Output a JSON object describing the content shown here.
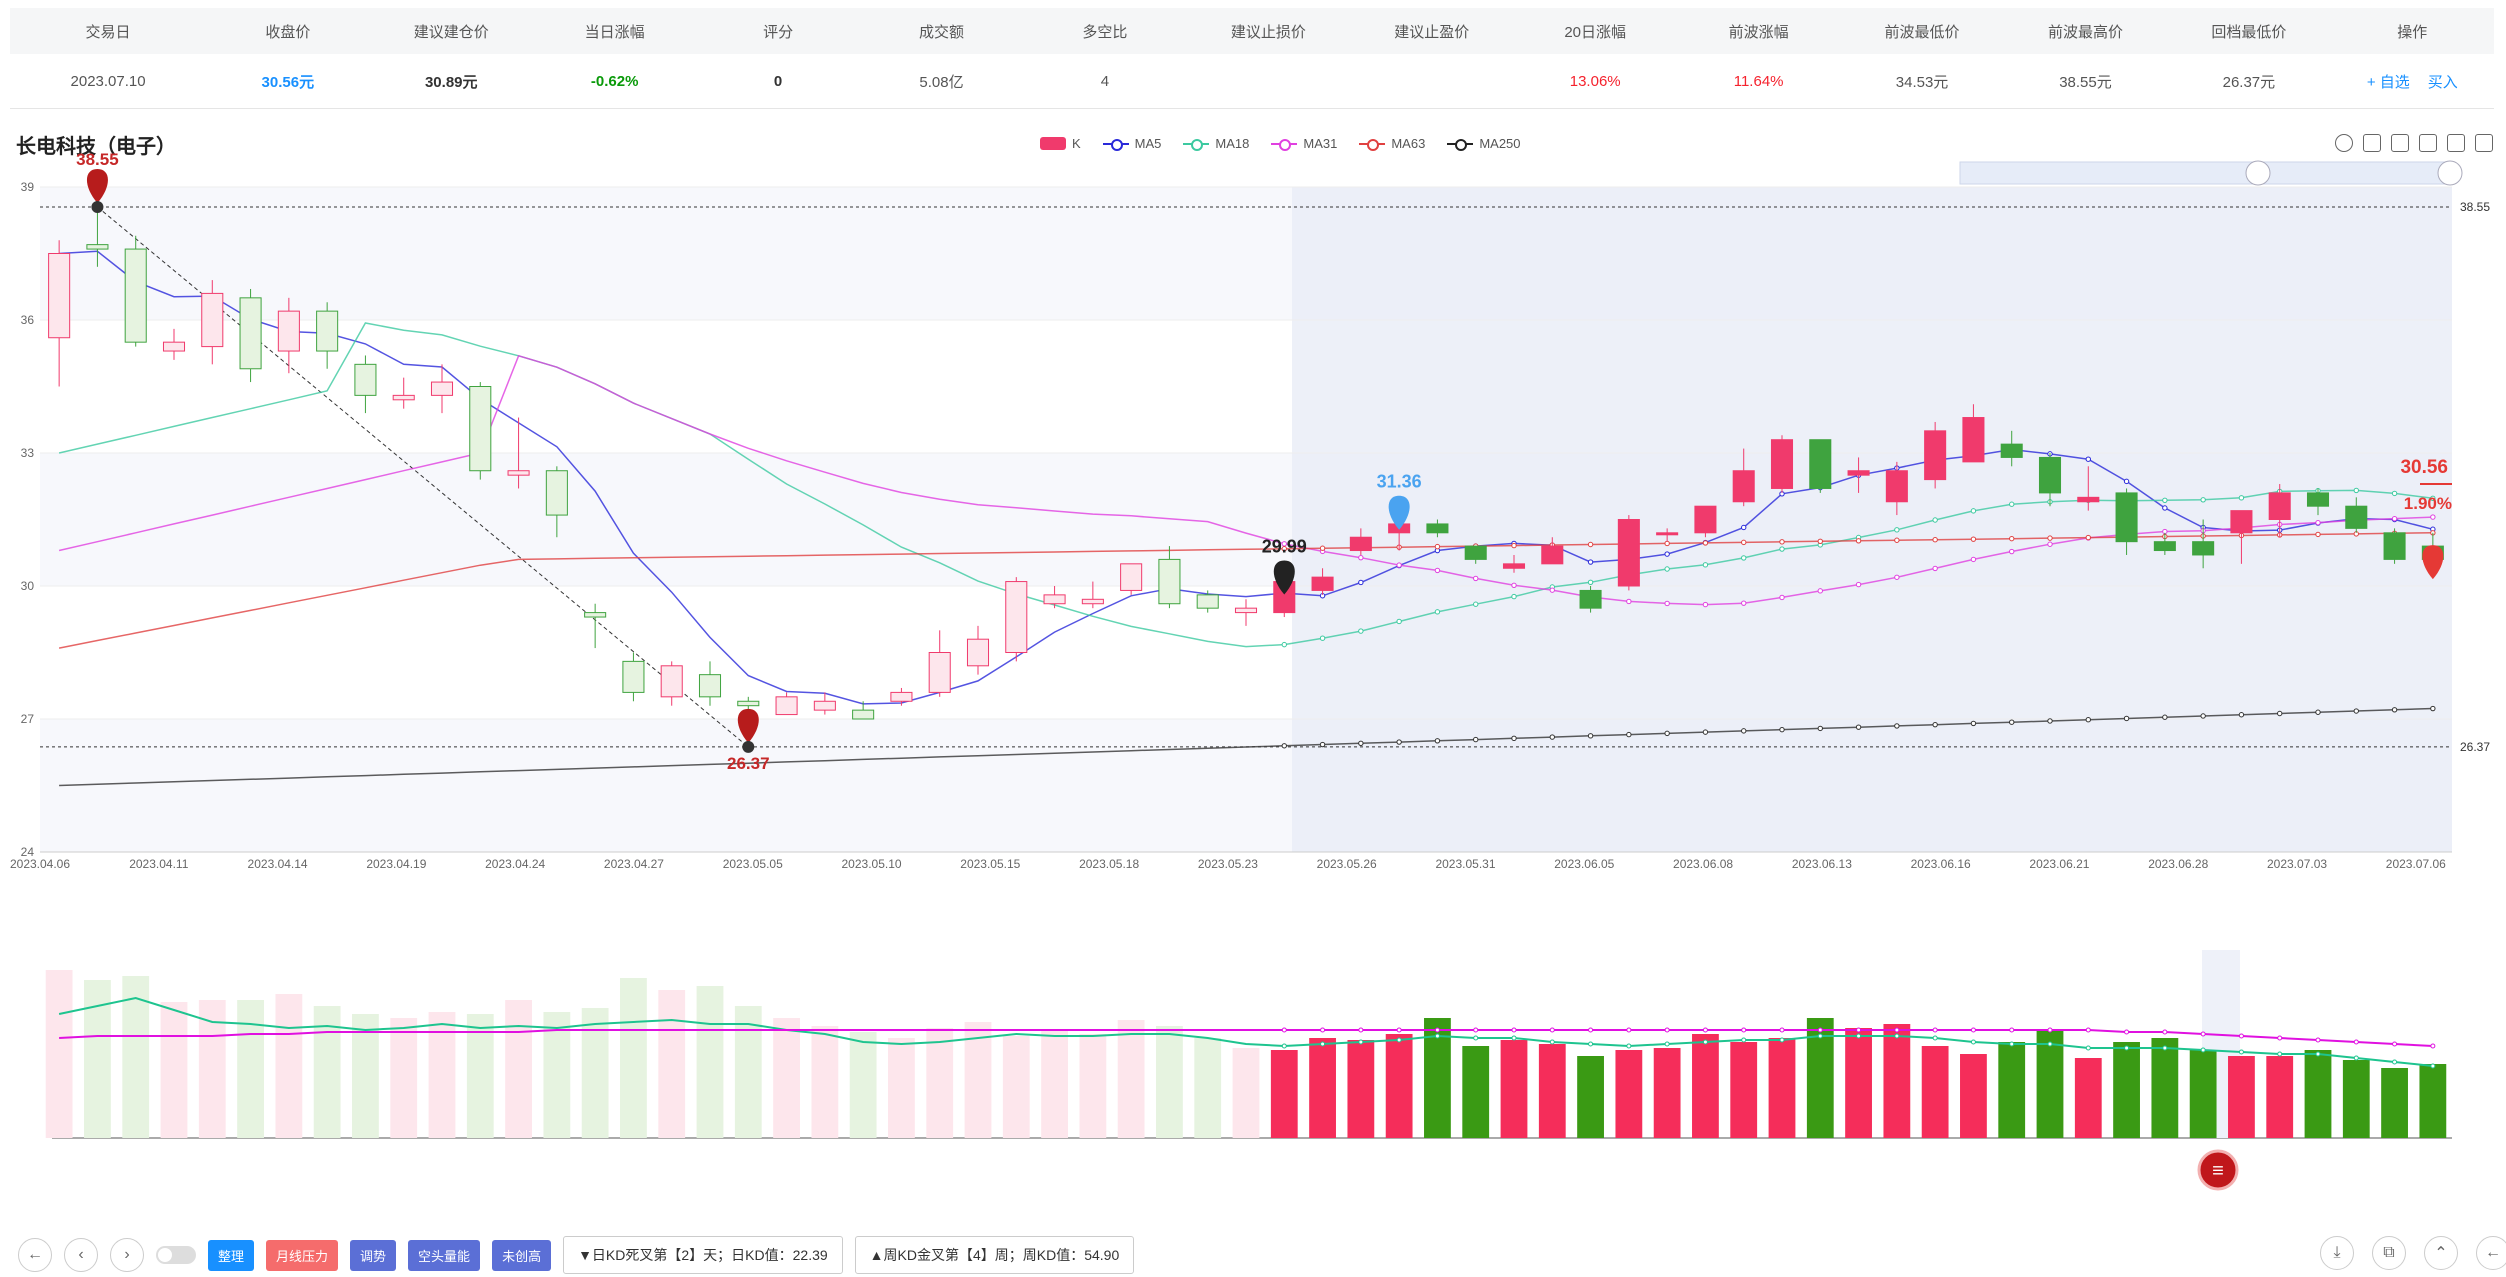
{
  "table": {
    "headers": [
      "交易日",
      "收盘价",
      "建议建仓价",
      "当日涨幅",
      "评分",
      "成交额",
      "多空比",
      "建议止损价",
      "建议止盈价",
      "20日涨幅",
      "前波涨幅",
      "前波最低价",
      "前波最高价",
      "回档最低价",
      "操作"
    ],
    "row": {
      "date": "2023.07.10",
      "close": "30.56元",
      "build": "30.89元",
      "day_change": "-0.62%",
      "score": "0",
      "turnover": "5.08亿",
      "ratio": "4",
      "stop_loss": "",
      "take_profit": "",
      "chg20": "13.06%",
      "prev_chg": "11.64%",
      "prev_low": "34.53元",
      "prev_high": "38.55元",
      "pull_low": "26.37元"
    },
    "ops": {
      "watch": "+ 自选",
      "buy": "买入"
    }
  },
  "stock_title": "长电科技（电子）",
  "legend": [
    {
      "name": "K",
      "color": "#f03a6c"
    },
    {
      "name": "MA5",
      "color": "#2929d9"
    },
    {
      "name": "MA18",
      "color": "#3cc9a0"
    },
    {
      "name": "MA31",
      "color": "#e040e0"
    },
    {
      "name": "MA63",
      "color": "#e04040"
    },
    {
      "name": "MA250",
      "color": "#222222"
    }
  ],
  "chart_data": {
    "type": "candlestick",
    "ylim": [
      24,
      39
    ],
    "yticks": [
      "39",
      "36",
      "33",
      "30",
      "27",
      "24"
    ],
    "xticks": [
      "2023.04.06",
      "2023.04.11",
      "2023.04.14",
      "2023.04.19",
      "2023.04.24",
      "2023.04.27",
      "2023.05.05",
      "2023.05.10",
      "2023.05.15",
      "2023.05.18",
      "2023.05.23",
      "2023.05.26",
      "2023.05.31",
      "2023.06.05",
      "2023.06.08",
      "2023.06.13",
      "2023.06.16",
      "2023.06.21",
      "2023.06.28",
      "2023.07.03",
      "2023.07.06"
    ],
    "hlines": [
      "38.55",
      "26.37"
    ],
    "annotations": {
      "high": "38.55",
      "low": "26.37",
      "mark1": "29.99",
      "mark2": "31.36",
      "last": "30.56",
      "last_pct": "1.90%"
    },
    "candles": [
      [
        35.6,
        37.5,
        34.5,
        37.8
      ],
      [
        37.7,
        37.6,
        37.2,
        38.5
      ],
      [
        37.6,
        35.5,
        35.4,
        37.9
      ],
      [
        35.3,
        35.5,
        35.1,
        35.8
      ],
      [
        35.4,
        36.6,
        35.0,
        36.9
      ],
      [
        36.5,
        34.9,
        34.6,
        36.7
      ],
      [
        35.3,
        36.2,
        34.8,
        36.5
      ],
      [
        36.2,
        35.3,
        34.9,
        36.4
      ],
      [
        35.0,
        34.3,
        33.9,
        35.2
      ],
      [
        34.2,
        34.3,
        34.0,
        34.7
      ],
      [
        34.3,
        34.6,
        33.9,
        35.0
      ],
      [
        34.5,
        32.6,
        32.4,
        34.6
      ],
      [
        32.5,
        32.6,
        32.2,
        33.8
      ],
      [
        32.6,
        31.6,
        31.1,
        32.7
      ],
      [
        29.4,
        29.3,
        28.6,
        29.6
      ],
      [
        28.3,
        27.6,
        27.4,
        28.5
      ],
      [
        27.5,
        28.2,
        27.3,
        28.3
      ],
      [
        28.0,
        27.5,
        27.3,
        28.3
      ],
      [
        27.4,
        27.3,
        27.1,
        27.5
      ],
      [
        27.1,
        27.5,
        27.1,
        27.6
      ],
      [
        27.2,
        27.4,
        27.1,
        27.6
      ],
      [
        27.2,
        27.0,
        27.0,
        27.4
      ],
      [
        27.4,
        27.6,
        27.3,
        27.7
      ],
      [
        27.6,
        28.5,
        27.5,
        29.0
      ],
      [
        28.2,
        28.8,
        28.0,
        29.1
      ],
      [
        28.5,
        30.1,
        28.3,
        30.2
      ],
      [
        29.6,
        29.8,
        29.5,
        30.0
      ],
      [
        29.6,
        29.7,
        29.5,
        30.1
      ],
      [
        29.9,
        30.5,
        29.8,
        30.5
      ],
      [
        30.6,
        29.6,
        29.5,
        30.9
      ],
      [
        29.8,
        29.5,
        29.4,
        29.9
      ],
      [
        29.4,
        29.5,
        29.1,
        29.7
      ],
      [
        29.4,
        30.1,
        29.3,
        30.1
      ],
      [
        29.9,
        30.2,
        29.8,
        30.4
      ],
      [
        30.8,
        31.1,
        30.7,
        31.3
      ],
      [
        31.2,
        31.4,
        30.8,
        31.5
      ],
      [
        31.4,
        31.2,
        31.1,
        31.5
      ],
      [
        30.9,
        30.6,
        30.5,
        30.9
      ],
      [
        30.4,
        30.5,
        30.3,
        30.7
      ],
      [
        30.5,
        30.9,
        30.5,
        31.1
      ],
      [
        29.9,
        29.5,
        29.4,
        30.0
      ],
      [
        30.0,
        31.5,
        29.9,
        31.6
      ],
      [
        31.2,
        31.2,
        31.0,
        31.3
      ],
      [
        31.2,
        31.8,
        31.1,
        31.8
      ],
      [
        31.9,
        32.6,
        31.8,
        33.1
      ],
      [
        32.2,
        33.3,
        32.1,
        33.4
      ],
      [
        33.3,
        32.2,
        32.1,
        33.3
      ],
      [
        32.5,
        32.6,
        32.1,
        32.9
      ],
      [
        31.9,
        32.6,
        31.6,
        32.8
      ],
      [
        32.4,
        33.5,
        32.2,
        33.7
      ],
      [
        32.8,
        33.8,
        32.8,
        34.1
      ],
      [
        33.2,
        32.9,
        32.7,
        33.5
      ],
      [
        32.9,
        32.1,
        31.8,
        33.0
      ],
      [
        31.9,
        32.0,
        31.7,
        32.7
      ],
      [
        32.1,
        31.0,
        30.7,
        32.2
      ],
      [
        31.0,
        30.8,
        30.7,
        31.2
      ],
      [
        31.0,
        30.7,
        30.4,
        31.5
      ],
      [
        31.2,
        31.7,
        30.5,
        31.7
      ],
      [
        31.5,
        32.1,
        31.1,
        32.3
      ],
      [
        32.1,
        31.8,
        31.6,
        32.2
      ],
      [
        31.8,
        31.3,
        31.2,
        32.0
      ],
      [
        31.2,
        30.6,
        30.5,
        31.3
      ],
      [
        30.9,
        30.6,
        30.2,
        31.2
      ]
    ],
    "volume": [
      84,
      79,
      81,
      68,
      69,
      69,
      72,
      66,
      62,
      60,
      63,
      62,
      69,
      63,
      65,
      80,
      74,
      76,
      66,
      60,
      56,
      53,
      50,
      55,
      58,
      51,
      54,
      52,
      59,
      56,
      50,
      45,
      44,
      50,
      49,
      52,
      60,
      46,
      49,
      47,
      41,
      44,
      45,
      52,
      48,
      50,
      60,
      55,
      57,
      46,
      42,
      48,
      54,
      40,
      48,
      50,
      44,
      41,
      41,
      44,
      39,
      35,
      37
    ],
    "volume_ma": [
      62,
      66,
      70,
      64,
      58,
      57,
      55,
      56,
      54,
      55,
      57,
      55,
      56,
      55,
      57,
      58,
      59,
      57,
      57,
      54,
      52,
      48,
      47,
      48,
      50,
      52,
      51,
      51,
      52,
      52,
      50,
      47,
      46,
      47,
      48,
      49,
      51,
      50,
      50,
      48,
      47,
      46,
      47,
      48,
      49,
      49,
      51,
      51,
      51,
      50,
      48,
      47,
      47,
      45,
      45,
      45,
      44,
      43,
      42,
      42,
      40,
      38,
      36
    ],
    "volume_ma2": [
      50,
      51,
      51,
      51,
      51,
      52,
      52,
      53,
      53,
      53,
      53,
      53,
      53,
      54,
      54,
      54,
      54,
      54,
      54,
      54,
      54,
      54,
      54,
      54,
      54,
      54,
      54,
      54,
      54,
      54,
      54,
      54,
      54,
      54,
      54,
      54,
      54,
      54,
      54,
      54,
      54,
      54,
      54,
      54,
      54,
      54,
      54,
      54,
      54,
      54,
      54,
      54,
      54,
      54,
      53,
      53,
      52,
      51,
      50,
      49,
      48,
      47,
      46
    ]
  },
  "bottom": {
    "tags": [
      {
        "label": "整理",
        "color": "#1890ff"
      },
      {
        "label": "月线压力",
        "color": "#f56c6c"
      },
      {
        "label": "调势",
        "color": "#5b6fd6"
      },
      {
        "label": "空头量能",
        "color": "#5b6fd6"
      },
      {
        "label": "未创高",
        "color": "#5b6fd6"
      }
    ],
    "info1": "▼日KD死叉第【2】天；日KD值：22.39",
    "info2": "▲周KD金叉第【4】周；周KD值：54.90"
  },
  "menu_icon": "≡"
}
